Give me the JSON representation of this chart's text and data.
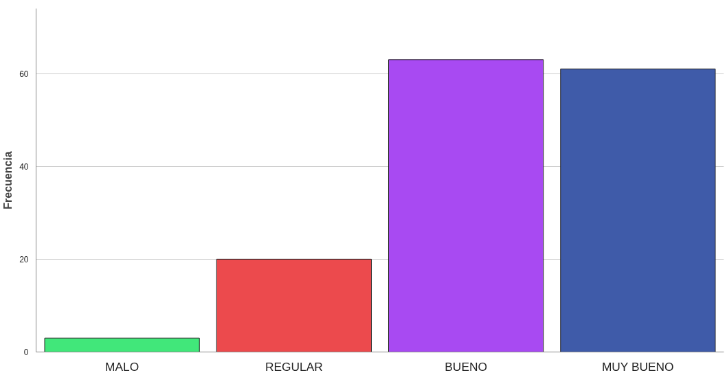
{
  "chart_data": {
    "type": "bar",
    "ylabel": "Frecuencia",
    "categories": [
      "MALO",
      "REGULAR",
      "BUENO",
      "MUY BUENO"
    ],
    "values": [
      3,
      20,
      63,
      61
    ],
    "colors": [
      "#41e77a",
      "#ec4a4d",
      "#a84af2",
      "#3f5ba9"
    ],
    "ylim": [
      0,
      74
    ],
    "yticks": [
      0,
      20,
      40,
      60
    ],
    "grid": "y"
  }
}
